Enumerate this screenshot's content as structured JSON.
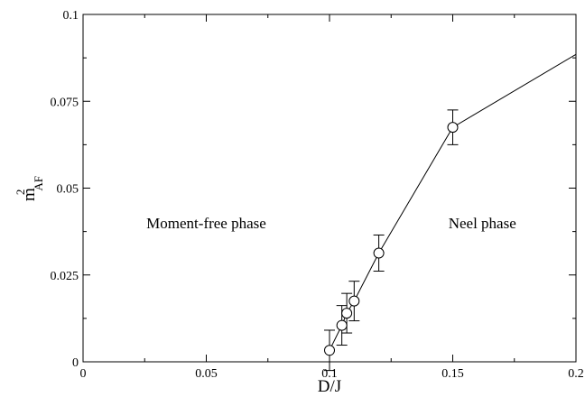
{
  "chart_data": {
    "type": "scatter",
    "title": "",
    "xlabel": "D/J",
    "ylabel": {
      "base": "m",
      "superscript": "2",
      "subscript": "AF"
    },
    "xlim": [
      0,
      0.2
    ],
    "ylim": [
      0,
      0.1
    ],
    "x_ticks": [
      0,
      0.05,
      0.1,
      0.15,
      0.2
    ],
    "x_tick_labels": [
      "0",
      "0.05",
      "0.1",
      "0.15",
      "0.2"
    ],
    "y_ticks": [
      0,
      0.025,
      0.05,
      0.075,
      0.1
    ],
    "y_tick_labels": [
      "0",
      "0.025",
      "0.05",
      "0.075",
      "0.1"
    ],
    "grid": false,
    "legend": "none",
    "series": [
      {
        "marker": "open-circle",
        "line": true,
        "color": "#000000",
        "points": [
          {
            "x": 0.1,
            "y": 0.0033,
            "err": 0.0058
          },
          {
            "x": 0.105,
            "y": 0.0105,
            "err": 0.0057
          },
          {
            "x": 0.107,
            "y": 0.014,
            "err": 0.0057
          },
          {
            "x": 0.11,
            "y": 0.0175,
            "err": 0.0057
          },
          {
            "x": 0.12,
            "y": 0.0313,
            "err": 0.0052
          },
          {
            "x": 0.15,
            "y": 0.0675,
            "err": 0.005
          }
        ],
        "line_extension": {
          "x": 0.2,
          "y": 0.0885
        }
      }
    ],
    "annotations": [
      {
        "text": "Moment-free phase",
        "x": 0.05,
        "y": 0.0385
      },
      {
        "text": "Neel phase",
        "x": 0.162,
        "y": 0.0385
      }
    ]
  }
}
